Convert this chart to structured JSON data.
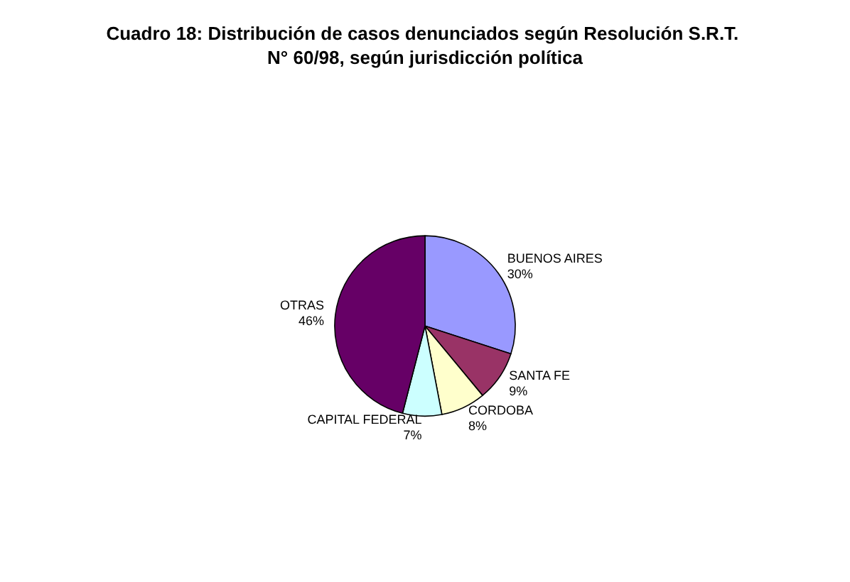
{
  "chart_data": {
    "type": "pie",
    "title": "Cuadro 18: Distribución de casos denunciados según Resolución S.R.T. N° 60/98, según jurisdicción política",
    "categories": [
      "BUENOS AIRES",
      "SANTA FE",
      "CORDOBA",
      "CAPITAL FEDERAL",
      "OTRAS"
    ],
    "values": [
      30,
      9,
      8,
      7,
      46
    ],
    "value_labels": [
      "30%",
      "9%",
      "8%",
      "7%",
      "46%"
    ],
    "colors": [
      "#9999ff",
      "#993366",
      "#ffffcc",
      "#ccffff",
      "#660066"
    ],
    "legend": false
  }
}
